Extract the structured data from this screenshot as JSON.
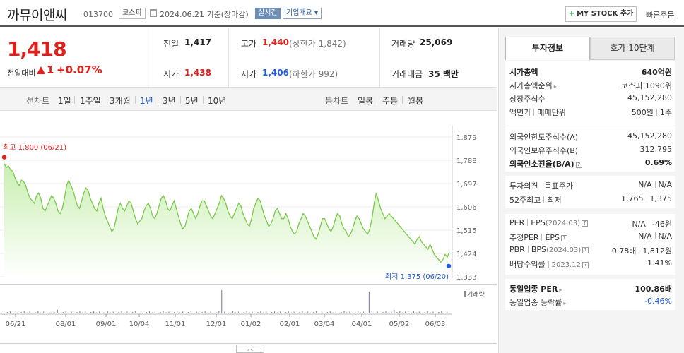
{
  "header": {
    "stock_name": "까뮤이앤씨",
    "stock_code": "013700",
    "market": "코스피",
    "date_text": "2024.06.21  기준(장마감)",
    "realtime_badge": "실시간",
    "company_overview": "기업개요 ▾",
    "my_stock_button": "MY STOCK 추가",
    "quick_order": "빠른주문"
  },
  "quote": {
    "price": "1,418",
    "change_label": "전일대비",
    "change_amount": "1",
    "change_percent": "+0.07%",
    "prev_close_label": "전일",
    "prev_close": "1,417",
    "high_label": "고가",
    "high": "1,440",
    "upper_limit": "(상한가 1,842)",
    "volume_label": "거래량",
    "volume": "25,069",
    "open_label": "시가",
    "open": "1,438",
    "low_label": "저가",
    "low": "1,406",
    "lower_limit": "(하한가 992)",
    "trade_value_label": "거래대금",
    "trade_value": "35 백만"
  },
  "period_bar": {
    "line_chart_label": "선차트",
    "line_periods": [
      "1일",
      "1주일",
      "3개월",
      "1년",
      "3년",
      "5년",
      "10년"
    ],
    "active_period": "1년",
    "candle_chart_label": "봉차트",
    "candle_periods": [
      "일봉",
      "주봉",
      "월봉"
    ]
  },
  "chart_data": {
    "type": "area",
    "y_ticks": [
      "1,879",
      "1,788",
      "1,697",
      "1,606",
      "1,515",
      "1,424",
      "1,333"
    ],
    "ylim": [
      1333,
      1879
    ],
    "x_ticks": [
      "06/21",
      "08/01",
      "09/01",
      "10/04",
      "11/01",
      "12/01",
      "01/02",
      "02/01",
      "03/04",
      "04/01",
      "05/02",
      "06/03"
    ],
    "high_annotation": "최고 1,800 (06/21)",
    "low_annotation": "최저 1,375 (06/20)",
    "volume_label": "거래량",
    "line_color": "#7cc84a",
    "fill_top_color": "#c8efb0",
    "marker_high_color": "#e0201b",
    "marker_low_color": "#1d5cd6",
    "values": [
      1775,
      1760,
      1765,
      1750,
      1745,
      1720,
      1700,
      1690,
      1710,
      1705,
      1690,
      1660,
      1640,
      1630,
      1620,
      1650,
      1660,
      1640,
      1600,
      1590,
      1610,
      1630,
      1650,
      1640,
      1620,
      1590,
      1580,
      1600,
      1640,
      1690,
      1710,
      1690,
      1670,
      1640,
      1610,
      1600,
      1630,
      1660,
      1680,
      1670,
      1640,
      1620,
      1600,
      1590,
      1620,
      1640,
      1600,
      1570,
      1550,
      1530,
      1510,
      1520,
      1560,
      1600,
      1620,
      1600,
      1590,
      1610,
      1630,
      1620,
      1590,
      1560,
      1540,
      1550,
      1560,
      1590,
      1610,
      1620,
      1600,
      1570,
      1560,
      1580,
      1610,
      1640,
      1650,
      1630,
      1600,
      1590,
      1610,
      1630,
      1600,
      1570,
      1540,
      1520,
      1530,
      1560,
      1590,
      1600,
      1580,
      1560,
      1580,
      1610,
      1630,
      1630,
      1610,
      1590,
      1570,
      1560,
      1580,
      1600,
      1620,
      1650,
      1640,
      1620,
      1590,
      1570,
      1560,
      1580,
      1600,
      1620,
      1610,
      1580,
      1560,
      1540,
      1530,
      1560,
      1600,
      1620,
      1640,
      1630,
      1600,
      1570,
      1550,
      1530,
      1540,
      1560,
      1590,
      1600,
      1580,
      1560,
      1560,
      1580,
      1560,
      1530,
      1510,
      1500,
      1510,
      1540,
      1560,
      1580,
      1570,
      1550,
      1530,
      1510,
      1490,
      1480,
      1500,
      1530,
      1560,
      1560,
      1540,
      1520,
      1510,
      1530,
      1560,
      1580,
      1570,
      1540,
      1520,
      1510,
      1490,
      1500,
      1520,
      1550,
      1570,
      1560,
      1540,
      1520,
      1510,
      1500,
      1520,
      1560,
      1620,
      1660,
      1630,
      1600,
      1580,
      1560,
      1570,
      1580,
      1570,
      1560,
      1550,
      1540,
      1530,
      1520,
      1510,
      1500,
      1490,
      1480,
      1470,
      1460,
      1480,
      1490,
      1470,
      1460,
      1450,
      1440,
      1460,
      1440,
      1420,
      1410,
      1400,
      1390,
      1400,
      1420,
      1410,
      1430
    ]
  },
  "invest_panel": {
    "tab_active": "투자정보",
    "tab_inactive": "호가 10단계",
    "market_cap_label": "시가총액",
    "market_cap": "640억원",
    "market_cap_rank_label": "시가총액순위",
    "market_cap_rank": "코스피 1090위",
    "listed_shares_label": "상장주식수",
    "listed_shares": "45,152,280",
    "par_value_label": "액면가",
    "trade_unit_label": "매매단위",
    "par_value": "500원",
    "trade_unit": "1주",
    "foreign_limit_label": "외국인한도주식수(A)",
    "foreign_limit": "45,152,280",
    "foreign_hold_label": "외국인보유주식수(B)",
    "foreign_hold": "312,795",
    "foreign_ratio_label": "외국인소진율(B/A)",
    "foreign_ratio": "0.69%",
    "opinion_label": "투자의견",
    "target_label": "목표주가",
    "opinion": "N/A",
    "target": "N/A",
    "week52_label_high": "52주최고",
    "week52_label_low": "최저",
    "week52_high": "1,765",
    "week52_low": "1,375",
    "per_label": "PER",
    "eps_label": "EPS",
    "eps_period": "(2024.03)",
    "per": "N/A",
    "eps": "-46원",
    "est_per_label": "추정PER",
    "est_eps_label": "EPS",
    "est_per": "N/A",
    "est_eps": "N/A",
    "pbr_label": "PBR",
    "bps_label": "BPS",
    "bps_period": "(2024.03)",
    "pbr": "0.78배",
    "bps": "1,812원",
    "dividend_label": "배당수익률",
    "dividend_period": "2023.12",
    "dividend": "1.41%",
    "industry_per_label": "동일업종 PER",
    "industry_per": "100.86배",
    "industry_change_label": "동일업종 등락률",
    "industry_change": "-0.46%"
  }
}
